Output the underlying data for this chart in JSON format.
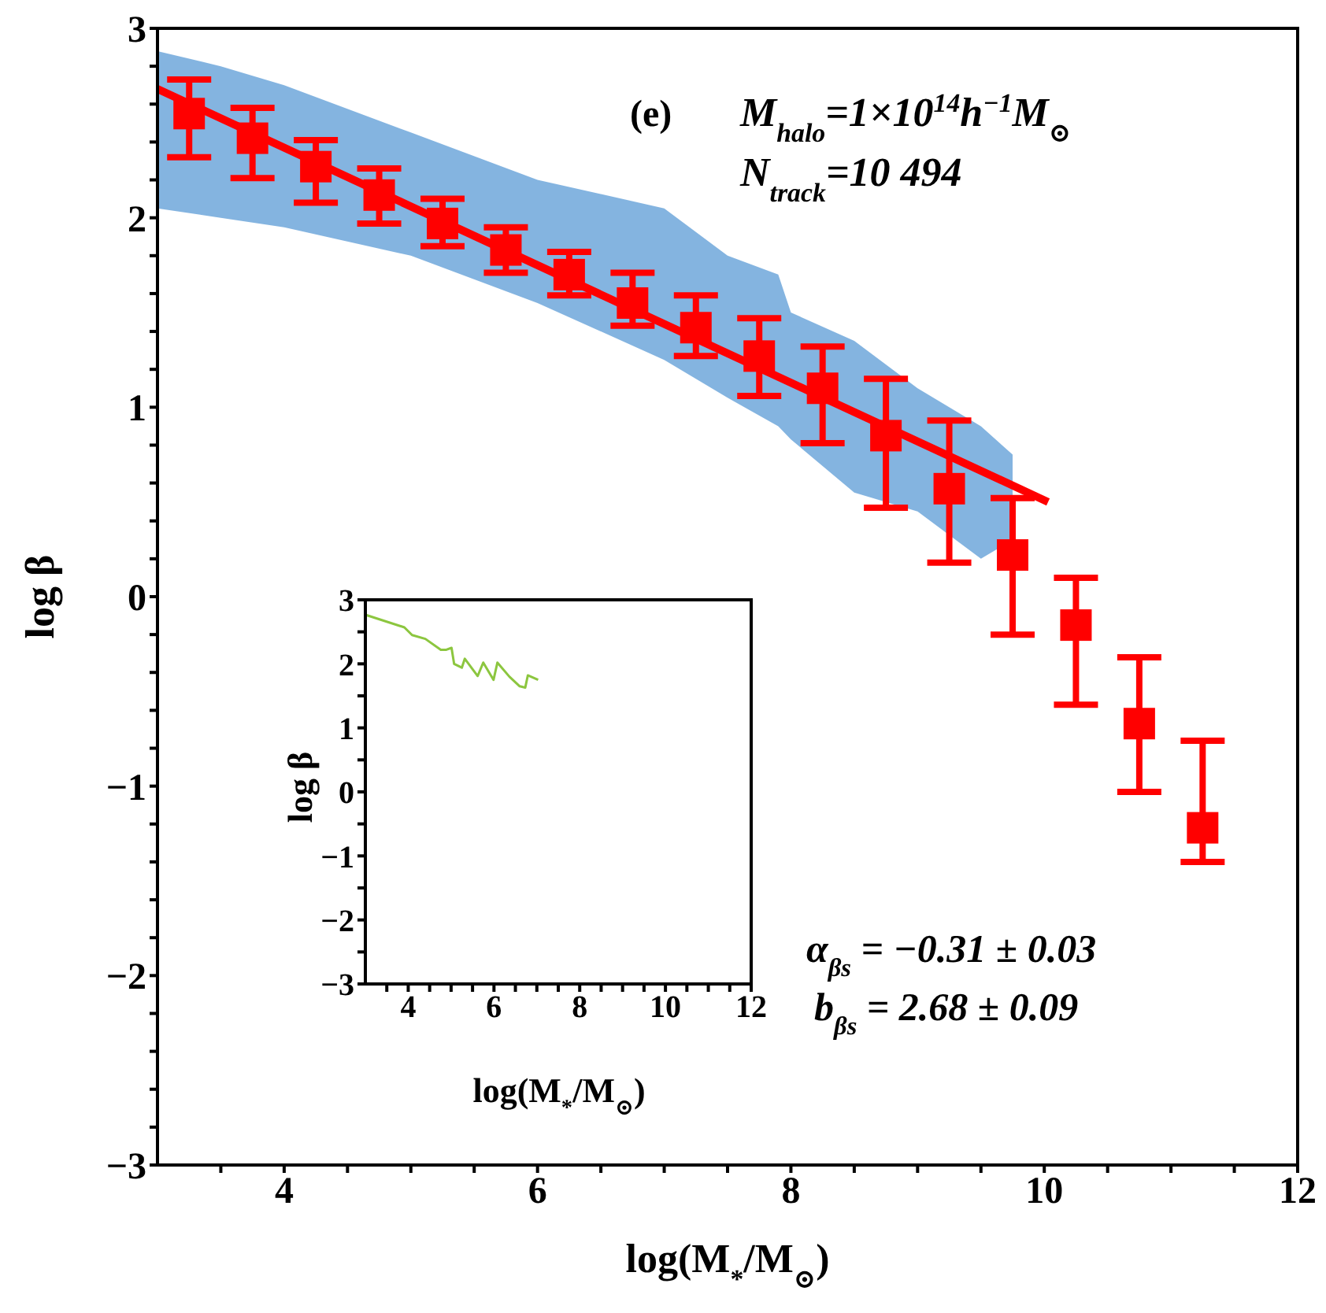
{
  "chart_data": [
    {
      "type": "scatter",
      "xlabel": "log(M$_{*}$/M$_{⊙}$)",
      "ylabel": "log β",
      "xlim": [
        3,
        12
      ],
      "ylim": [
        -3,
        3
      ],
      "xticks": [
        {
          "value": 3.5,
          "label": null
        },
        4,
        {
          "value": 4.5,
          "label": null
        },
        {
          "value": 5,
          "label": null
        },
        {
          "value": 5.5,
          "label": null
        },
        6,
        {
          "value": 6.5,
          "label": null
        },
        {
          "value": 7,
          "label": null
        },
        {
          "value": 7.5,
          "label": null
        },
        8,
        {
          "value": 8.5,
          "label": null
        },
        {
          "value": 9,
          "label": null
        },
        {
          "value": 9.5,
          "label": null
        },
        10,
        {
          "value": 10.5,
          "label": null
        },
        {
          "value": 11,
          "label": null
        },
        {
          "value": 11.5,
          "label": null
        },
        12
      ],
      "yticks": [
        {
          "value": -3,
          "label": "−3"
        },
        {
          "value": -2.8,
          "label": null
        },
        {
          "value": -2.6,
          "label": null
        },
        {
          "value": -2.4,
          "label": null
        },
        {
          "value": -2.2,
          "label": null
        },
        {
          "value": -2,
          "label": "−2"
        },
        {
          "value": -1.8,
          "label": null
        },
        {
          "value": -1.6,
          "label": null
        },
        {
          "value": -1.4,
          "label": null
        },
        {
          "value": -1.2,
          "label": null
        },
        {
          "value": -1,
          "label": "−1"
        },
        {
          "value": -0.8,
          "label": null
        },
        {
          "value": -0.6,
          "label": null
        },
        {
          "value": -0.4,
          "label": null
        },
        {
          "value": -0.2,
          "label": null
        },
        0,
        {
          "value": 0.2,
          "label": null
        },
        {
          "value": 0.4,
          "label": null
        },
        {
          "value": 0.6,
          "label": null
        },
        {
          "value": 0.8,
          "label": null
        },
        1,
        {
          "value": 1.2,
          "label": null
        },
        {
          "value": 1.4,
          "label": null
        },
        {
          "value": 1.6,
          "label": null
        },
        {
          "value": 1.8,
          "label": null
        },
        2,
        {
          "value": 2.2,
          "label": null
        },
        {
          "value": 2.4,
          "label": null
        },
        {
          "value": 2.6,
          "label": null
        },
        {
          "value": 2.8,
          "label": null
        },
        3
      ],
      "annotations": [
        "(e)",
        "M$_{halo}$=1×10$^{14}$h$^{−1}$M$_{⊙}$",
        "N$_{track}$=10 494",
        "α$_{βs}$ = −0.31 ± 0.03",
        "b$_{βs}$ = 2.68 ± 0.09"
      ],
      "series": [
        {
          "type": "area",
          "color": "#5b9bd5",
          "x": [
            3,
            3.5,
            4,
            5,
            6,
            7,
            7.5,
            7.9,
            8,
            8.5,
            9,
            9.5,
            9.75
          ],
          "values": [
            null,
            null,
            null,
            null,
            null,
            null,
            null,
            null,
            null,
            null,
            null,
            null,
            null
          ],
          "lower": [
            2.05,
            2.0,
            1.95,
            1.8,
            1.55,
            1.25,
            1.05,
            0.9,
            0.83,
            0.55,
            0.45,
            0.2,
            0.3
          ],
          "upper": [
            2.88,
            2.8,
            2.7,
            2.45,
            2.2,
            2.05,
            1.8,
            1.7,
            1.5,
            1.35,
            1.1,
            0.9,
            0.75
          ]
        },
        {
          "type": "line",
          "color": "#ff0000",
          "x": [
            3,
            10.03
          ],
          "values": [
            2.68,
            0.5
          ]
        },
        {
          "color": "#ff0000",
          "marker": "square",
          "x": [
            3.25,
            3.75,
            4.25,
            4.75,
            5.25,
            5.75,
            6.25,
            6.75,
            7.25,
            7.75,
            8.25,
            8.75,
            9.25,
            9.75,
            10.25,
            10.75,
            11.25
          ],
          "values": [
            2.55,
            2.42,
            2.27,
            2.12,
            1.97,
            1.83,
            1.7,
            1.55,
            1.42,
            1.27,
            1.1,
            0.85,
            0.57,
            0.22,
            -0.15,
            -0.67,
            -1.22
          ],
          "errors": [
            [
              2.32,
              2.73
            ],
            [
              2.21,
              2.58
            ],
            [
              2.08,
              2.41
            ],
            [
              1.97,
              2.26
            ],
            [
              1.85,
              2.1
            ],
            [
              1.71,
              1.95
            ],
            [
              1.59,
              1.82
            ],
            [
              1.43,
              1.71
            ],
            [
              1.27,
              1.59
            ],
            [
              1.06,
              1.47
            ],
            [
              0.81,
              1.32
            ],
            [
              0.47,
              1.15
            ],
            [
              0.18,
              0.93
            ],
            [
              -0.2,
              0.52
            ],
            [
              -0.57,
              0.1
            ],
            [
              -1.03,
              -0.32
            ],
            [
              -1.4,
              -0.76
            ]
          ]
        }
      ]
    },
    {
      "type": "line",
      "xlabel": "log(M$_{*}$/M$_{⊙}$)",
      "ylabel": "log β",
      "xlim": [
        3,
        12
      ],
      "ylim": [
        -3,
        3
      ],
      "xticks": [
        {
          "value": 3.5,
          "label": null
        },
        4,
        {
          "value": 4.5,
          "label": null
        },
        {
          "value": 5,
          "label": null
        },
        {
          "value": 5.5,
          "label": null
        },
        6,
        {
          "value": 6.5,
          "label": null
        },
        {
          "value": 7,
          "label": null
        },
        {
          "value": 7.5,
          "label": null
        },
        8,
        {
          "value": 8.5,
          "label": null
        },
        {
          "value": 9,
          "label": null
        },
        {
          "value": 9.5,
          "label": null
        },
        10,
        {
          "value": 10.5,
          "label": null
        },
        {
          "value": 11,
          "label": null
        },
        {
          "value": 11.5,
          "label": null
        },
        12
      ],
      "yticks": [
        {
          "value": -3,
          "label": "−3"
        },
        {
          "value": -2.5,
          "label": null
        },
        {
          "value": -2,
          "label": "−2"
        },
        {
          "value": -1.5,
          "label": null
        },
        {
          "value": -1,
          "label": "−1"
        },
        {
          "value": -0.5,
          "label": null
        },
        0,
        {
          "value": 0.5,
          "label": null
        },
        1,
        {
          "value": 1.5,
          "label": null
        },
        2,
        {
          "value": 2.5,
          "label": null
        },
        3
      ],
      "series": [
        {
          "color": "#8cc63f",
          "x": [
            3.03,
            3.91,
            4.09,
            4.4,
            4.76,
            4.89,
            5.01,
            5.07,
            5.25,
            5.32,
            5.62,
            5.75,
            5.99,
            6.08,
            6.36,
            6.6,
            6.73,
            6.79,
            7.03
          ],
          "values": [
            2.76,
            2.57,
            2.45,
            2.39,
            2.22,
            2.22,
            2.25,
            2.0,
            1.94,
            2.08,
            1.81,
            2.02,
            1.75,
            2.02,
            1.8,
            1.65,
            1.63,
            1.82,
            1.75
          ]
        }
      ]
    }
  ]
}
